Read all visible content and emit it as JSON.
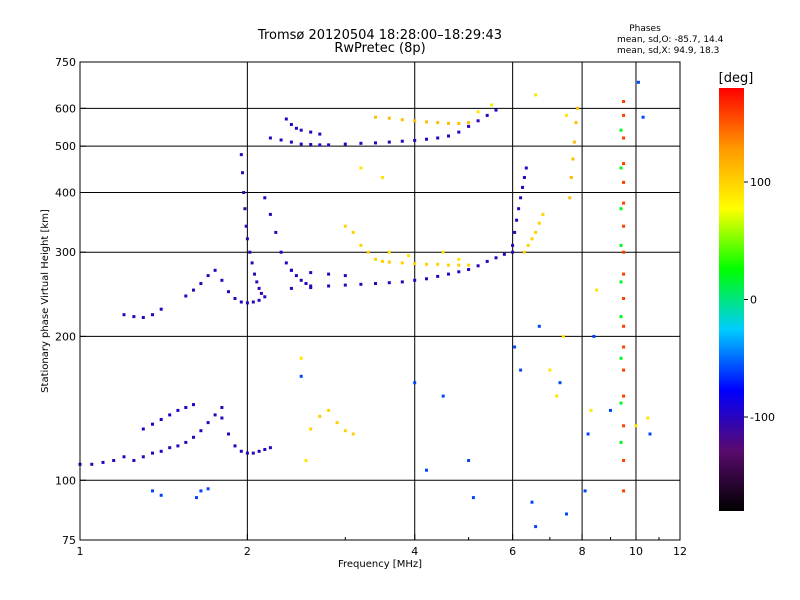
{
  "chart_data": {
    "type": "scatter",
    "title": "Tromsø 20120504 18:28:00–18:29:43",
    "subtitle": "RwPretec (8p)",
    "xlabel": "Frequency [MHz]",
    "ylabel": "Stationary phase Virtual Height [km]",
    "x_scale": "log",
    "y_scale": "log",
    "xlim": [
      1,
      12
    ],
    "ylim": [
      75,
      750
    ],
    "x_ticks": [
      1,
      2,
      4,
      6,
      8,
      10,
      12
    ],
    "y_ticks": [
      75,
      100,
      200,
      300,
      400,
      500,
      600,
      750
    ],
    "grid": true,
    "phases": {
      "header": "Phases",
      "line_o": "mean, sd,O: -85.7, 14.4",
      "line_x": "mean, sd,X:  94.9, 18.3"
    },
    "colorbar": {
      "label": "[deg]",
      "range": [
        -180,
        180
      ],
      "ticks": [
        100,
        0,
        -100
      ],
      "colors": [
        "#000000",
        "#5a0a6e",
        "#0000ff",
        "#00ccff",
        "#00ff00",
        "#ffff00",
        "#ff9900",
        "#ff0000"
      ]
    },
    "series": [
      {
        "phase": -100,
        "points": [
          [
            1.0,
            108
          ],
          [
            1.05,
            108
          ],
          [
            1.1,
            109
          ],
          [
            1.15,
            110
          ],
          [
            1.2,
            112
          ],
          [
            1.25,
            110
          ],
          [
            1.3,
            112
          ],
          [
            1.35,
            114
          ],
          [
            1.4,
            115
          ],
          [
            1.45,
            117
          ],
          [
            1.5,
            118
          ],
          [
            1.55,
            120
          ],
          [
            1.6,
            123
          ],
          [
            1.65,
            127
          ],
          [
            1.7,
            132
          ],
          [
            1.75,
            137
          ],
          [
            1.8,
            142
          ]
        ]
      },
      {
        "phase": -100,
        "points": [
          [
            1.8,
            135
          ],
          [
            1.85,
            125
          ],
          [
            1.9,
            118
          ],
          [
            1.95,
            115
          ],
          [
            2.0,
            114
          ],
          [
            2.05,
            114
          ],
          [
            2.1,
            115
          ],
          [
            2.15,
            116
          ],
          [
            2.2,
            117
          ]
        ]
      },
      {
        "phase": -95,
        "points": [
          [
            1.3,
            128
          ],
          [
            1.35,
            131
          ],
          [
            1.4,
            134
          ],
          [
            1.45,
            137
          ],
          [
            1.5,
            140
          ],
          [
            1.55,
            142
          ],
          [
            1.6,
            144
          ]
        ]
      },
      {
        "phase": -100,
        "points": [
          [
            1.2,
            222
          ],
          [
            1.25,
            220
          ],
          [
            1.3,
            219
          ],
          [
            1.35,
            222
          ],
          [
            1.4,
            228
          ]
        ]
      },
      {
        "phase": -100,
        "points": [
          [
            1.55,
            243
          ],
          [
            1.6,
            250
          ],
          [
            1.65,
            258
          ],
          [
            1.7,
            268
          ],
          [
            1.75,
            275
          ],
          [
            1.8,
            262
          ],
          [
            1.85,
            248
          ],
          [
            1.9,
            240
          ],
          [
            1.95,
            236
          ],
          [
            2.0,
            235
          ],
          [
            2.05,
            236
          ],
          [
            2.1,
            238
          ],
          [
            2.15,
            242
          ]
        ]
      },
      {
        "phase": -105,
        "points": [
          [
            1.95,
            480
          ],
          [
            1.96,
            440
          ],
          [
            1.97,
            400
          ],
          [
            1.98,
            370
          ],
          [
            1.99,
            340
          ],
          [
            2.0,
            320
          ],
          [
            2.02,
            300
          ],
          [
            2.04,
            285
          ],
          [
            2.06,
            270
          ],
          [
            2.08,
            260
          ],
          [
            2.1,
            252
          ],
          [
            2.12,
            246
          ]
        ]
      },
      {
        "phase": -100,
        "points": [
          [
            2.15,
            390
          ],
          [
            2.2,
            360
          ],
          [
            2.25,
            330
          ],
          [
            2.3,
            300
          ],
          [
            2.35,
            285
          ],
          [
            2.4,
            275
          ],
          [
            2.45,
            268
          ],
          [
            2.5,
            262
          ],
          [
            2.55,
            258
          ],
          [
            2.6,
            255
          ]
        ]
      },
      {
        "phase": -100,
        "points": [
          [
            2.4,
            252
          ],
          [
            2.6,
            253
          ],
          [
            2.8,
            255
          ],
          [
            3.0,
            256
          ],
          [
            3.2,
            257
          ],
          [
            3.4,
            258
          ],
          [
            3.6,
            259
          ],
          [
            3.8,
            260
          ],
          [
            4.0,
            262
          ],
          [
            4.2,
            264
          ],
          [
            4.4,
            267
          ],
          [
            4.6,
            270
          ],
          [
            4.8,
            273
          ],
          [
            5.0,
            276
          ],
          [
            5.2,
            281
          ],
          [
            5.4,
            287
          ],
          [
            5.6,
            292
          ],
          [
            5.8,
            297
          ],
          [
            6.0,
            300
          ]
        ]
      },
      {
        "phase": -100,
        "points": [
          [
            2.4,
            275
          ],
          [
            2.6,
            272
          ],
          [
            2.8,
            270
          ],
          [
            3.0,
            268
          ]
        ]
      },
      {
        "phase": -100,
        "points": [
          [
            2.2,
            520
          ],
          [
            2.3,
            515
          ],
          [
            2.4,
            510
          ],
          [
            2.5,
            505
          ],
          [
            2.6,
            504
          ],
          [
            2.7,
            503
          ],
          [
            2.8,
            503
          ],
          [
            3.0,
            505
          ],
          [
            3.2,
            507
          ],
          [
            3.4,
            508
          ],
          [
            3.6,
            510
          ],
          [
            3.8,
            512
          ],
          [
            4.0,
            514
          ],
          [
            4.2,
            517
          ],
          [
            4.4,
            520
          ],
          [
            4.6,
            525
          ],
          [
            4.8,
            535
          ],
          [
            5.0,
            550
          ],
          [
            5.2,
            565
          ],
          [
            5.4,
            580
          ],
          [
            5.6,
            595
          ]
        ]
      },
      {
        "phase": -100,
        "points": [
          [
            2.35,
            570
          ],
          [
            2.4,
            555
          ],
          [
            2.45,
            545
          ],
          [
            2.5,
            540
          ],
          [
            2.6,
            535
          ],
          [
            2.7,
            530
          ]
        ]
      },
      {
        "phase": -100,
        "points": [
          [
            6.0,
            310
          ],
          [
            6.05,
            330
          ],
          [
            6.1,
            350
          ],
          [
            6.15,
            370
          ],
          [
            6.2,
            390
          ],
          [
            6.25,
            410
          ],
          [
            6.3,
            430
          ],
          [
            6.35,
            450
          ]
        ]
      },
      {
        "phase": 100,
        "points": [
          [
            2.6,
            128
          ],
          [
            2.7,
            136
          ],
          [
            2.8,
            140
          ],
          [
            2.9,
            132
          ],
          [
            3.0,
            127
          ],
          [
            3.1,
            125
          ]
        ]
      },
      {
        "phase": 100,
        "points": [
          [
            3.0,
            340
          ],
          [
            3.1,
            330
          ],
          [
            3.2,
            310
          ],
          [
            3.3,
            300
          ],
          [
            3.4,
            290
          ],
          [
            3.5,
            287
          ],
          [
            3.6,
            286
          ],
          [
            3.8,
            285
          ],
          [
            4.0,
            284
          ],
          [
            4.2,
            283
          ],
          [
            4.4,
            283
          ],
          [
            4.6,
            282
          ],
          [
            4.8,
            282
          ],
          [
            5.0,
            282
          ]
        ]
      },
      {
        "phase": 110,
        "points": [
          [
            3.4,
            575
          ],
          [
            3.6,
            572
          ],
          [
            3.8,
            568
          ],
          [
            4.0,
            565
          ],
          [
            4.2,
            562
          ],
          [
            4.4,
            560
          ],
          [
            4.6,
            558
          ],
          [
            4.8,
            558
          ],
          [
            5.0,
            560
          ]
        ]
      },
      {
        "phase": 100,
        "points": [
          [
            6.3,
            300
          ],
          [
            6.4,
            310
          ],
          [
            6.5,
            320
          ],
          [
            6.6,
            330
          ],
          [
            6.7,
            345
          ],
          [
            6.8,
            360
          ]
        ]
      },
      {
        "phase": 110,
        "points": [
          [
            7.6,
            390
          ],
          [
            7.65,
            430
          ],
          [
            7.7,
            470
          ],
          [
            7.75,
            510
          ],
          [
            7.8,
            560
          ],
          [
            7.85,
            600
          ]
        ]
      },
      {
        "phase": 160,
        "points": [
          [
            9.5,
            95
          ],
          [
            9.5,
            110
          ],
          [
            9.5,
            130
          ],
          [
            9.5,
            150
          ],
          [
            9.5,
            170
          ],
          [
            9.5,
            190
          ],
          [
            9.5,
            210
          ],
          [
            9.5,
            240
          ],
          [
            9.5,
            270
          ],
          [
            9.5,
            300
          ],
          [
            9.5,
            340
          ],
          [
            9.5,
            380
          ],
          [
            9.5,
            420
          ],
          [
            9.5,
            460
          ],
          [
            9.5,
            520
          ],
          [
            9.5,
            580
          ],
          [
            9.5,
            620
          ]
        ]
      },
      {
        "phase": 20,
        "points": [
          [
            9.4,
            120
          ],
          [
            9.4,
            145
          ],
          [
            9.4,
            180
          ],
          [
            9.4,
            220
          ],
          [
            9.4,
            260
          ],
          [
            9.4,
            310
          ],
          [
            9.4,
            370
          ],
          [
            9.4,
            450
          ],
          [
            9.4,
            540
          ]
        ]
      },
      {
        "phase": -60,
        "points": [
          [
            1.35,
            95
          ],
          [
            1.4,
            93
          ],
          [
            1.62,
            92
          ],
          [
            1.65,
            95
          ],
          [
            1.7,
            96
          ],
          [
            2.5,
            165
          ],
          [
            4.0,
            160
          ],
          [
            4.2,
            105
          ],
          [
            4.5,
            150
          ],
          [
            5.0,
            110
          ],
          [
            5.1,
            92
          ],
          [
            6.05,
            190
          ],
          [
            6.2,
            170
          ],
          [
            6.5,
            90
          ],
          [
            6.6,
            80
          ],
          [
            6.7,
            210
          ],
          [
            7.3,
            160
          ],
          [
            7.5,
            85
          ],
          [
            8.1,
            95
          ],
          [
            8.2,
            125
          ],
          [
            8.4,
            200
          ],
          [
            9.0,
            140
          ],
          [
            10.1,
            680
          ],
          [
            10.3,
            575
          ],
          [
            10.6,
            125
          ]
        ]
      },
      {
        "phase": 90,
        "points": [
          [
            2.5,
            180
          ],
          [
            2.55,
            110
          ],
          [
            3.2,
            450
          ],
          [
            3.5,
            430
          ],
          [
            3.6,
            300
          ],
          [
            3.9,
            295
          ],
          [
            4.5,
            300
          ],
          [
            4.8,
            290
          ],
          [
            5.2,
            590
          ],
          [
            5.5,
            610
          ],
          [
            6.6,
            640
          ],
          [
            7.0,
            170
          ],
          [
            7.2,
            150
          ],
          [
            7.4,
            200
          ],
          [
            7.5,
            580
          ],
          [
            8.3,
            140
          ],
          [
            8.5,
            250
          ],
          [
            10.0,
            130
          ],
          [
            10.5,
            135
          ]
        ]
      }
    ]
  }
}
